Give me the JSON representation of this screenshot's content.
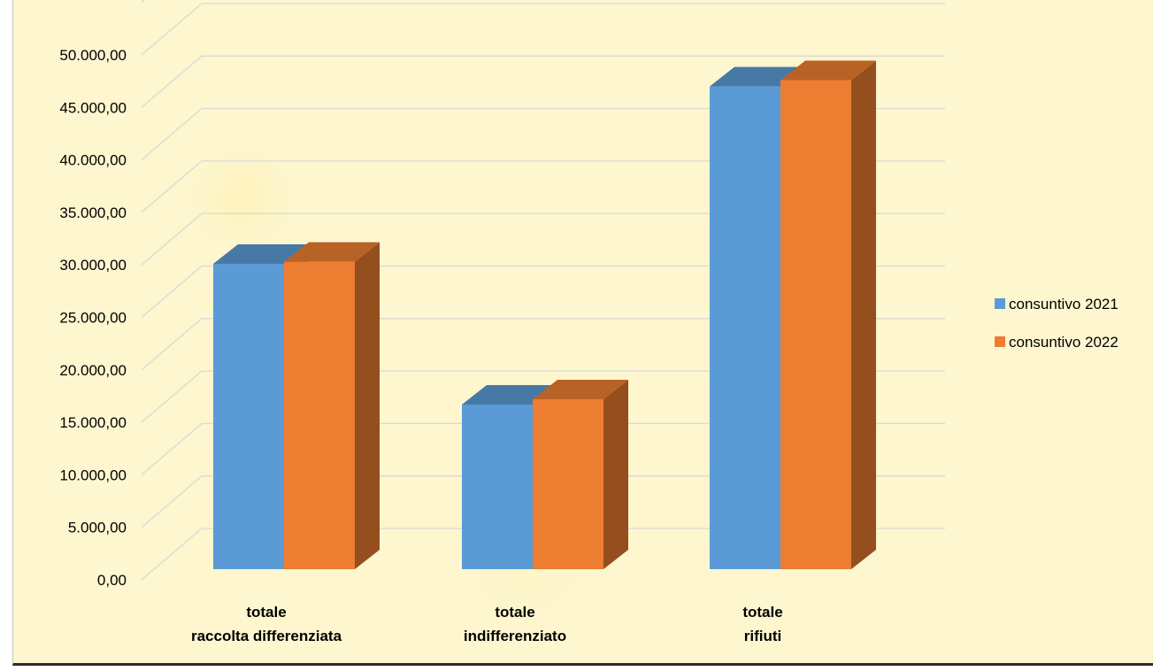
{
  "chart_data": {
    "type": "bar",
    "title": "",
    "xlabel": "",
    "ylabel": "",
    "categories": [
      [
        "totale",
        "raccolta differenziata"
      ],
      [
        "totale",
        "indifferenziato"
      ],
      [
        "totale",
        "rifiuti"
      ]
    ],
    "series": [
      {
        "name": "consuntivo 2021",
        "values": [
          30100,
          16700,
          47000
        ],
        "color": "#5b9bd5"
      },
      {
        "name": "consuntivo 2022",
        "values": [
          30300,
          17200,
          47600
        ],
        "color": "#ed7d31"
      }
    ],
    "y_ticks": [
      "0,00",
      "5.000,00",
      "10.000,00",
      "15.000,00",
      "20.000,00",
      "25.000,00",
      "30.000,00",
      "35.000,00",
      "40.000,00",
      "45.000,00",
      "50.000,00"
    ],
    "ylim": [
      0,
      55000
    ],
    "grid": true,
    "legend_position": "right",
    "style": "3d-clustered-column"
  }
}
